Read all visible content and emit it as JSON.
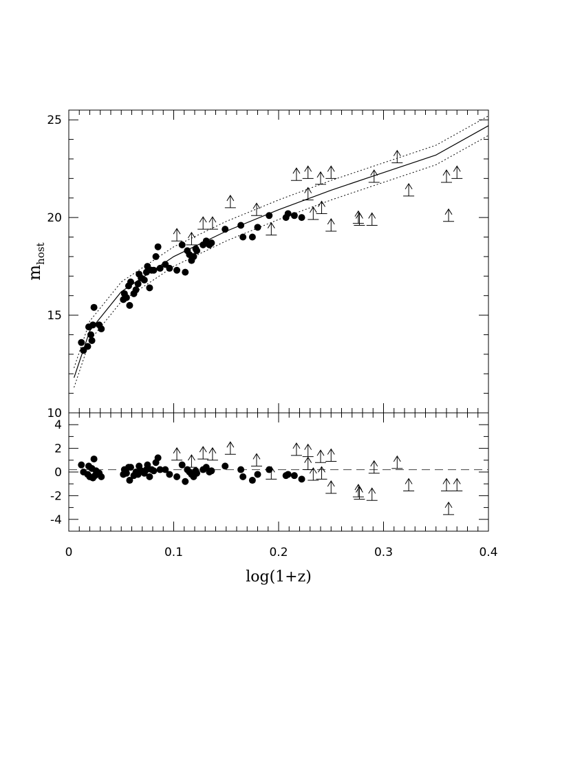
{
  "chart_data": [
    {
      "type": "scatter",
      "panel": "top",
      "xlabel": "log(1+z)",
      "ylabel_main": "m",
      "ylabel_sub": "host",
      "xlim": [
        0,
        0.4
      ],
      "ylim": [
        10,
        25.5
      ],
      "y_ticks": [
        10,
        15,
        20,
        25
      ],
      "x_ticks": [
        0,
        0.1,
        0.2,
        0.3,
        0.4
      ],
      "grid": false,
      "series": [
        {
          "marker": "filled-circle",
          "points": [
            [
              0.012,
              13.6
            ],
            [
              0.014,
              13.2
            ],
            [
              0.018,
              13.4
            ],
            [
              0.019,
              14.4
            ],
            [
              0.021,
              14.0
            ],
            [
              0.022,
              13.7
            ],
            [
              0.023,
              14.5
            ],
            [
              0.024,
              15.4
            ],
            [
              0.029,
              14.5
            ],
            [
              0.031,
              14.3
            ],
            [
              0.052,
              15.8
            ],
            [
              0.053,
              16.1
            ],
            [
              0.055,
              15.9
            ],
            [
              0.057,
              16.5
            ],
            [
              0.058,
              15.5
            ],
            [
              0.059,
              16.7
            ],
            [
              0.062,
              16.1
            ],
            [
              0.064,
              16.3
            ],
            [
              0.066,
              16.6
            ],
            [
              0.067,
              17.1
            ],
            [
              0.069,
              16.9
            ],
            [
              0.072,
              16.8
            ],
            [
              0.074,
              17.2
            ],
            [
              0.075,
              17.5
            ],
            [
              0.077,
              16.4
            ],
            [
              0.079,
              17.3
            ],
            [
              0.081,
              17.3
            ],
            [
              0.083,
              18.0
            ],
            [
              0.085,
              18.5
            ],
            [
              0.087,
              17.4
            ],
            [
              0.092,
              17.6
            ],
            [
              0.096,
              17.4
            ],
            [
              0.103,
              17.3
            ],
            [
              0.108,
              18.6
            ],
            [
              0.111,
              17.2
            ],
            [
              0.113,
              18.3
            ],
            [
              0.115,
              18.1
            ],
            [
              0.117,
              17.8
            ],
            [
              0.119,
              18.0
            ],
            [
              0.121,
              18.4
            ],
            [
              0.122,
              18.3
            ],
            [
              0.128,
              18.6
            ],
            [
              0.131,
              18.8
            ],
            [
              0.134,
              18.6
            ],
            [
              0.136,
              18.7
            ],
            [
              0.149,
              19.4
            ],
            [
              0.164,
              19.6
            ],
            [
              0.166,
              19.0
            ],
            [
              0.175,
              19.0
            ],
            [
              0.18,
              19.5
            ],
            [
              0.191,
              20.1
            ],
            [
              0.207,
              20.0
            ],
            [
              0.209,
              20.2
            ],
            [
              0.215,
              20.1
            ],
            [
              0.222,
              20.0
            ]
          ]
        },
        {
          "marker": "upward-arrow",
          "points": [
            [
              0.103,
              18.8
            ],
            [
              0.117,
              18.6
            ],
            [
              0.128,
              19.4
            ],
            [
              0.137,
              19.4
            ],
            [
              0.154,
              20.5
            ],
            [
              0.179,
              20.1
            ],
            [
              0.193,
              19.1
            ],
            [
              0.217,
              21.9
            ],
            [
              0.228,
              22.0
            ],
            [
              0.228,
              20.9
            ],
            [
              0.233,
              19.9
            ],
            [
              0.24,
              21.7
            ],
            [
              0.241,
              20.2
            ],
            [
              0.25,
              22.0
            ],
            [
              0.25,
              19.3
            ],
            [
              0.276,
              19.7
            ],
            [
              0.277,
              19.6
            ],
            [
              0.289,
              19.6
            ],
            [
              0.291,
              21.8
            ],
            [
              0.313,
              22.8
            ],
            [
              0.324,
              21.1
            ],
            [
              0.36,
              21.8
            ],
            [
              0.362,
              19.8
            ],
            [
              0.37,
              22.0
            ]
          ]
        }
      ],
      "model_curve": [
        [
          0.005,
          11.8
        ],
        [
          0.02,
          14.2
        ],
        [
          0.05,
          16.2
        ],
        [
          0.1,
          18.0
        ],
        [
          0.15,
          19.3
        ],
        [
          0.2,
          20.4
        ],
        [
          0.25,
          21.4
        ],
        [
          0.3,
          22.3
        ],
        [
          0.35,
          23.2
        ],
        [
          0.4,
          24.7
        ]
      ],
      "model_band_offset": 0.5
    },
    {
      "type": "scatter",
      "panel": "bottom",
      "xlim": [
        0,
        0.4
      ],
      "ylim": [
        -5,
        5
      ],
      "y_ticks": [
        -4,
        -2,
        0,
        2,
        4
      ],
      "reference_line": 0.2,
      "series": [
        {
          "marker": "filled-circle",
          "points": [
            [
              0.012,
              0.6
            ],
            [
              0.014,
              0.0
            ],
            [
              0.018,
              -0.2
            ],
            [
              0.019,
              0.5
            ],
            [
              0.02,
              -0.4
            ],
            [
              0.022,
              0.3
            ],
            [
              0.023,
              -0.5
            ],
            [
              0.024,
              1.1
            ],
            [
              0.025,
              -0.3
            ],
            [
              0.026,
              0.1
            ],
            [
              0.029,
              -0.1
            ],
            [
              0.031,
              -0.4
            ],
            [
              0.052,
              -0.2
            ],
            [
              0.053,
              0.2
            ],
            [
              0.055,
              -0.1
            ],
            [
              0.057,
              0.4
            ],
            [
              0.058,
              -0.7
            ],
            [
              0.059,
              0.4
            ],
            [
              0.062,
              -0.3
            ],
            [
              0.064,
              0.0
            ],
            [
              0.066,
              -0.2
            ],
            [
              0.067,
              0.5
            ],
            [
              0.069,
              0.1
            ],
            [
              0.072,
              -0.1
            ],
            [
              0.074,
              0.2
            ],
            [
              0.075,
              0.6
            ],
            [
              0.077,
              -0.4
            ],
            [
              0.079,
              0.2
            ],
            [
              0.081,
              0.1
            ],
            [
              0.083,
              0.8
            ],
            [
              0.085,
              1.2
            ],
            [
              0.087,
              0.2
            ],
            [
              0.092,
              0.2
            ],
            [
              0.096,
              -0.2
            ],
            [
              0.103,
              -0.4
            ],
            [
              0.108,
              0.6
            ],
            [
              0.111,
              -0.8
            ],
            [
              0.113,
              0.2
            ],
            [
              0.115,
              0.0
            ],
            [
              0.117,
              -0.2
            ],
            [
              0.119,
              -0.4
            ],
            [
              0.121,
              0.1
            ],
            [
              0.122,
              -0.1
            ],
            [
              0.128,
              0.2
            ],
            [
              0.131,
              0.4
            ],
            [
              0.134,
              0.0
            ],
            [
              0.136,
              0.1
            ],
            [
              0.149,
              0.5
            ],
            [
              0.164,
              0.2
            ],
            [
              0.166,
              -0.4
            ],
            [
              0.175,
              -0.7
            ],
            [
              0.18,
              -0.2
            ],
            [
              0.191,
              0.2
            ],
            [
              0.207,
              -0.3
            ],
            [
              0.209,
              -0.2
            ],
            [
              0.215,
              -0.3
            ],
            [
              0.222,
              -0.6
            ]
          ]
        },
        {
          "marker": "upward-arrow",
          "points": [
            [
              0.103,
              1.0
            ],
            [
              0.117,
              0.4
            ],
            [
              0.128,
              1.1
            ],
            [
              0.137,
              1.0
            ],
            [
              0.154,
              1.5
            ],
            [
              0.179,
              0.5
            ],
            [
              0.193,
              -0.6
            ],
            [
              0.217,
              1.4
            ],
            [
              0.228,
              1.3
            ],
            [
              0.228,
              0.2
            ],
            [
              0.233,
              -0.7
            ],
            [
              0.24,
              0.8
            ],
            [
              0.241,
              -0.6
            ],
            [
              0.25,
              0.9
            ],
            [
              0.25,
              -1.8
            ],
            [
              0.276,
              -2.1
            ],
            [
              0.277,
              -2.3
            ],
            [
              0.289,
              -2.4
            ],
            [
              0.291,
              -0.1
            ],
            [
              0.313,
              0.3
            ],
            [
              0.324,
              -1.6
            ],
            [
              0.36,
              -1.6
            ],
            [
              0.362,
              -3.6
            ],
            [
              0.37,
              -1.6
            ]
          ]
        }
      ]
    }
  ]
}
